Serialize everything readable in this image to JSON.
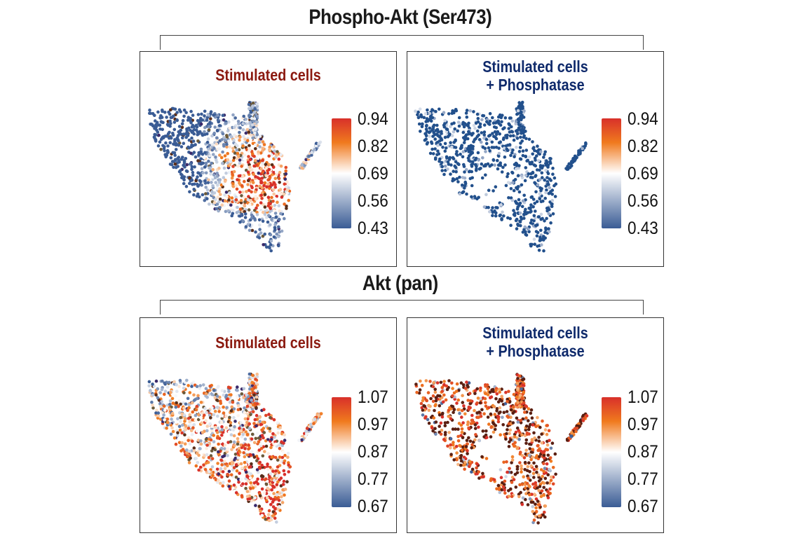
{
  "chart_data": [
    {
      "group": "Phospho-Akt (Ser473)",
      "type": "scatter",
      "title": "Stimulated cells",
      "title_color": "#8b1a10",
      "colorbar": {
        "ticks": [
          "0.94",
          "0.82",
          "0.69",
          "0.56",
          "0.43"
        ],
        "range": [
          0.43,
          0.94
        ]
      },
      "expression_profile": "high-center-right",
      "colormap": [
        "#3a5c95",
        "#ffffff",
        "#f07a1e",
        "#d8302a"
      ]
    },
    {
      "group": "Phospho-Akt (Ser473)",
      "type": "scatter",
      "title": "Stimulated cells\n+ Phosphatase",
      "title_color": "#0f2a6b",
      "colorbar": {
        "ticks": [
          "0.94",
          "0.82",
          "0.69",
          "0.56",
          "0.43"
        ],
        "range": [
          0.43,
          0.94
        ]
      },
      "expression_profile": "uniformly-low",
      "colormap": [
        "#3a5c95",
        "#ffffff",
        "#f07a1e",
        "#d8302a"
      ]
    },
    {
      "group": "Akt (pan)",
      "type": "scatter",
      "title": "Stimulated cells",
      "title_color": "#8b1a10",
      "colorbar": {
        "ticks": [
          "1.07",
          "0.97",
          "0.87",
          "0.77",
          "0.67"
        ],
        "range": [
          0.67,
          1.07
        ]
      },
      "expression_profile": "mixed-high-lower-right",
      "colormap": [
        "#3a5c95",
        "#ffffff",
        "#f07a1e",
        "#d8302a"
      ]
    },
    {
      "group": "Akt (pan)",
      "type": "scatter",
      "title": "Stimulated cells\n+ Phosphatase",
      "title_color": "#0f2a6b",
      "colorbar": {
        "ticks": [
          "1.07",
          "0.97",
          "0.87",
          "0.77",
          "0.67"
        ],
        "range": [
          0.67,
          1.07
        ]
      },
      "expression_profile": "mostly-high",
      "colormap": [
        "#3a5c95",
        "#ffffff",
        "#f07a1e",
        "#d8302a"
      ]
    }
  ],
  "groups": {
    "top": "Phospho-Akt (Ser473)",
    "bottom": "Akt (pan)"
  },
  "panels": {
    "p1": {
      "title_line1": "Stimulated cells",
      "title_line2": ""
    },
    "p2": {
      "title_line1": "Stimulated cells",
      "title_line2": "+ Phosphatase"
    },
    "p3": {
      "title_line1": "Stimulated cells",
      "title_line2": ""
    },
    "p4": {
      "title_line1": "Stimulated cells",
      "title_line2": "+ Phosphatase"
    }
  }
}
